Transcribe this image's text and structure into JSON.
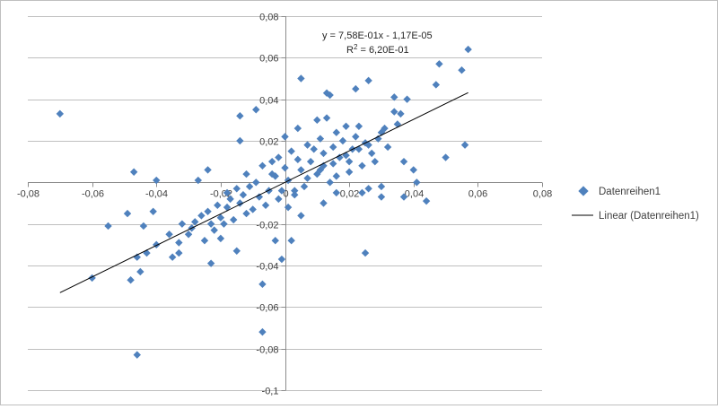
{
  "chart_data": {
    "type": "scatter",
    "title": "",
    "xlabel": "",
    "ylabel": "",
    "xlim": [
      -0.08,
      0.08
    ],
    "ylim": [
      -0.1,
      0.08
    ],
    "x_ticks": [
      -0.08,
      -0.06,
      -0.04,
      -0.02,
      0,
      0.02,
      0.04,
      0.06,
      0.08
    ],
    "y_ticks": [
      -0.1,
      -0.08,
      -0.06,
      -0.04,
      -0.02,
      0,
      0.02,
      0.04,
      0.06,
      0.08
    ],
    "x_tick_labels": [
      "-0,08",
      "-0,06",
      "-0,04",
      "-0,02",
      "0",
      "0,02",
      "0,04",
      "0,06",
      "0,08"
    ],
    "y_tick_labels": [
      "-0,1",
      "-0,08",
      "-0,06",
      "-0,04",
      "-0,02",
      "0",
      "0,02",
      "0,04",
      "0,06",
      "0,08"
    ],
    "grid": "horizontal",
    "legend_position": "right",
    "series_color": "#4f81bd",
    "trend_color": "#000000",
    "series": [
      {
        "name": "Datenreihen1",
        "points": [
          [
            0.057,
            0.064
          ],
          [
            0.048,
            0.057
          ],
          [
            0.055,
            0.054
          ],
          [
            0.047,
            0.047
          ],
          [
            0.056,
            0.018
          ],
          [
            0.05,
            0.012
          ],
          [
            0.041,
            0.0
          ],
          [
            0.038,
            0.04
          ],
          [
            0.034,
            0.041
          ],
          [
            0.034,
            0.034
          ],
          [
            0.036,
            0.033
          ],
          [
            0.035,
            0.028
          ],
          [
            0.022,
            0.045
          ],
          [
            0.026,
            0.049
          ],
          [
            0.013,
            0.043
          ],
          [
            0.005,
            0.05
          ],
          [
            0.014,
            0.042
          ],
          [
            0.013,
            0.031
          ],
          [
            0.03,
            0.024
          ],
          [
            0.023,
            0.027
          ],
          [
            0.032,
            0.017
          ],
          [
            0.037,
            0.01
          ],
          [
            0.04,
            0.006
          ],
          [
            0.044,
            -0.009
          ],
          [
            0.037,
            -0.007
          ],
          [
            0.03,
            -0.007
          ],
          [
            0.03,
            -0.002
          ],
          [
            0.026,
            -0.003
          ],
          [
            0.024,
            -0.005
          ],
          [
            0.025,
            -0.034
          ],
          [
            0.016,
            -0.005
          ],
          [
            0.012,
            -0.01
          ],
          [
            0.005,
            -0.016
          ],
          [
            0.003,
            -0.006
          ],
          [
            0.001,
            -0.012
          ],
          [
            -0.003,
            -0.028
          ],
          [
            0.002,
            -0.028
          ],
          [
            -0.001,
            -0.037
          ],
          [
            -0.007,
            -0.049
          ],
          [
            -0.007,
            -0.072
          ],
          [
            -0.012,
            -0.015
          ],
          [
            -0.015,
            -0.033
          ],
          [
            -0.02,
            -0.027
          ],
          [
            -0.023,
            -0.039
          ],
          [
            -0.033,
            -0.034
          ],
          [
            -0.035,
            -0.036
          ],
          [
            -0.04,
            -0.03
          ],
          [
            -0.043,
            -0.034
          ],
          [
            -0.046,
            -0.036
          ],
          [
            -0.045,
            -0.043
          ],
          [
            -0.046,
            -0.083
          ],
          [
            -0.048,
            -0.047
          ],
          [
            -0.06,
            -0.046
          ],
          [
            -0.055,
            -0.021
          ],
          [
            -0.049,
            -0.015
          ],
          [
            -0.044,
            -0.021
          ],
          [
            -0.041,
            -0.014
          ],
          [
            -0.047,
            0.005
          ],
          [
            -0.04,
            0.001
          ],
          [
            -0.07,
            0.033
          ],
          [
            -0.027,
            0.001
          ],
          [
            -0.024,
            0.006
          ],
          [
            -0.014,
            0.02
          ],
          [
            -0.014,
            0.032
          ],
          [
            -0.009,
            0.035
          ],
          [
            -0.004,
            0.01
          ],
          [
            -0.003,
            0.003
          ],
          [
            0.0,
            0.022
          ],
          [
            0.004,
            0.026
          ],
          [
            0.01,
            0.03
          ],
          [
            0.018,
            0.02
          ],
          [
            0.015,
            0.017
          ],
          [
            0.02,
            0.01
          ],
          [
            0.017,
            0.012
          ],
          [
            0.021,
            0.016
          ],
          [
            0.012,
            0.008
          ],
          [
            0.008,
            0.01
          ],
          [
            0.005,
            0.006
          ],
          [
            0.01,
            0.004
          ],
          [
            0.014,
            0.0
          ],
          [
            0.006,
            -0.002
          ],
          [
            0.001,
            0.001
          ],
          [
            -0.001,
            -0.004
          ],
          [
            -0.005,
            -0.004
          ],
          [
            -0.008,
            -0.007
          ],
          [
            -0.011,
            -0.002
          ],
          [
            -0.014,
            -0.01
          ],
          [
            -0.018,
            -0.012
          ],
          [
            -0.02,
            -0.017
          ],
          [
            -0.023,
            -0.02
          ],
          [
            -0.026,
            -0.016
          ],
          [
            -0.029,
            -0.022
          ],
          [
            -0.025,
            -0.028
          ],
          [
            -0.03,
            -0.025
          ],
          [
            -0.033,
            -0.029
          ],
          [
            -0.018,
            -0.005
          ],
          [
            -0.015,
            -0.003
          ],
          [
            -0.012,
            0.004
          ],
          [
            -0.007,
            0.008
          ],
          [
            -0.002,
            0.012
          ],
          [
            0.002,
            0.015
          ],
          [
            0.007,
            0.018
          ],
          [
            0.011,
            0.021
          ],
          [
            0.016,
            0.024
          ],
          [
            0.019,
            0.027
          ],
          [
            0.022,
            0.022
          ],
          [
            0.025,
            0.019
          ],
          [
            0.027,
            0.014
          ],
          [
            0.028,
            0.01
          ],
          [
            0.024,
            0.008
          ],
          [
            0.02,
            0.005
          ],
          [
            0.016,
            0.003
          ],
          [
            0.012,
            0.014
          ],
          [
            0.009,
            0.016
          ],
          [
            0.004,
            0.011
          ],
          [
            0.0,
            0.007
          ],
          [
            -0.004,
            0.004
          ],
          [
            -0.009,
            0.0
          ],
          [
            -0.013,
            -0.006
          ],
          [
            -0.017,
            -0.008
          ],
          [
            -0.021,
            -0.011
          ],
          [
            -0.024,
            -0.014
          ],
          [
            -0.028,
            -0.019
          ],
          [
            -0.032,
            -0.02
          ],
          [
            -0.036,
            -0.025
          ],
          [
            -0.022,
            -0.023
          ],
          [
            -0.019,
            -0.02
          ],
          [
            -0.016,
            -0.018
          ],
          [
            -0.01,
            -0.013
          ],
          [
            -0.006,
            -0.011
          ],
          [
            -0.002,
            -0.008
          ],
          [
            0.003,
            -0.004
          ],
          [
            0.007,
            0.002
          ],
          [
            0.011,
            0.006
          ],
          [
            0.015,
            0.009
          ],
          [
            0.019,
            0.013
          ],
          [
            0.023,
            0.016
          ],
          [
            0.026,
            0.018
          ],
          [
            0.029,
            0.021
          ],
          [
            0.031,
            0.026
          ]
        ]
      },
      {
        "name": "Linear (Datenreihen1)",
        "slope": 0.758,
        "intercept": -1.17e-05,
        "x_range": [
          -0.07,
          0.057
        ]
      }
    ],
    "annotation": {
      "equation": "y = 7,58E-01x - 1,17E-05",
      "r_squared_prefix": "R",
      "r_squared_sup": "2",
      "r_squared_value": " = 6,20E-01"
    }
  }
}
